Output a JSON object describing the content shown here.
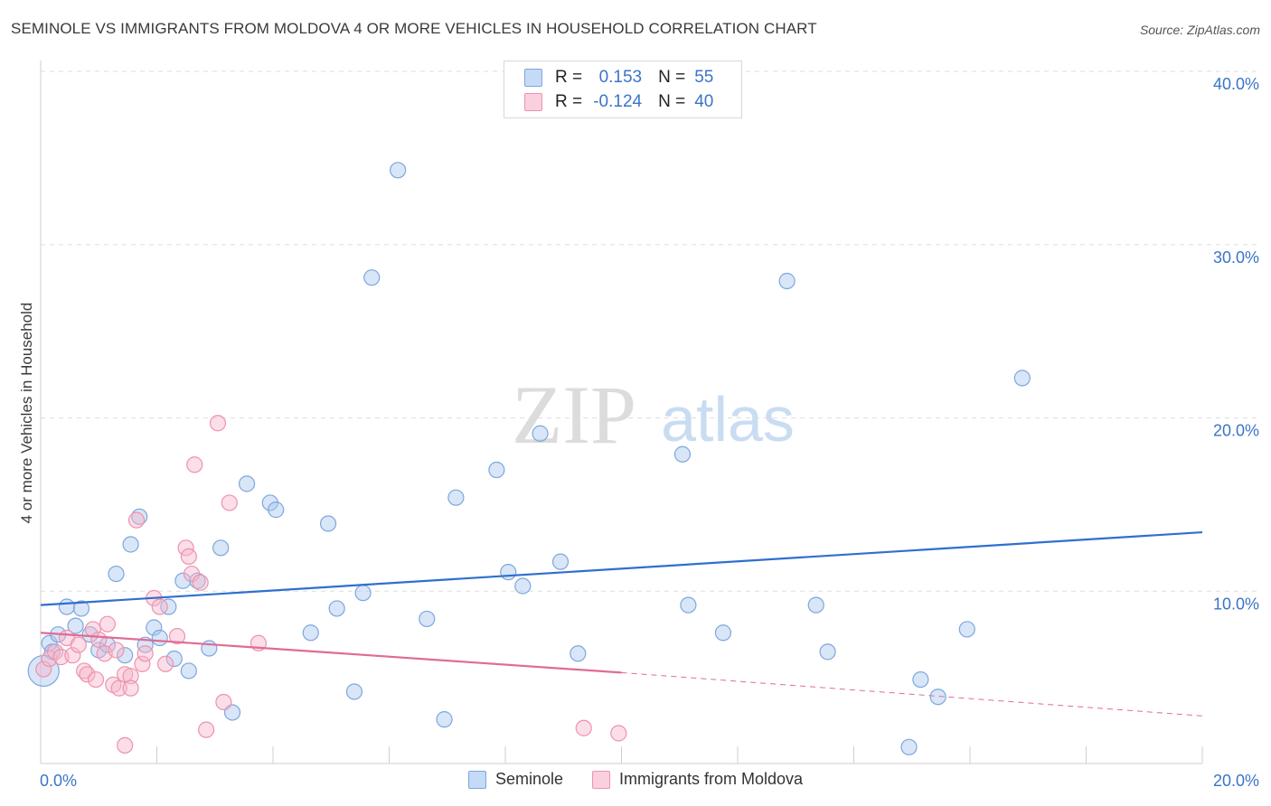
{
  "header": {
    "title": "SEMINOLE VS IMMIGRANTS FROM MOLDOVA 4 OR MORE VEHICLES IN HOUSEHOLD CORRELATION CHART",
    "source": "Source: ZipAtlas.com"
  },
  "watermark": {
    "zip": "ZIP",
    "atlas": "atlas"
  },
  "legend": {
    "rows": [
      {
        "r_label": "R =",
        "r_value": "0.153",
        "n_label": "N =",
        "n_value": "55",
        "color": "#a9c8f0"
      },
      {
        "r_label": "R =",
        "r_value": "-0.124",
        "n_label": "N =",
        "n_value": "40",
        "color": "#f7b6ca"
      }
    ]
  },
  "colors": {
    "blue_fill": "#a9c8f0",
    "blue_stroke": "#7da7dc",
    "blue_line": "#2f6fcf",
    "pink_fill": "#f7b6ca",
    "pink_stroke": "#ee92ae",
    "pink_line": "#e06b96",
    "tick_text": "#3b74c7"
  },
  "chart_data": {
    "type": "scatter",
    "title": "SEMINOLE VS IMMIGRANTS FROM MOLDOVA 4 OR MORE VEHICLES IN HOUSEHOLD CORRELATION CHART",
    "xlabel": "",
    "ylabel": "4 or more Vehicles in Household",
    "xlim": [
      0,
      20
    ],
    "ylim": [
      0,
      40
    ],
    "x_tick_labels": [
      "0.0%",
      "20.0%"
    ],
    "y_ticks": [
      10,
      20,
      30,
      40
    ],
    "y_tick_labels": [
      "10.0%",
      "20.0%",
      "30.0%",
      "40.0%"
    ],
    "grid": true,
    "legend_position": "bottom",
    "series": [
      {
        "name": "Seminole",
        "r": 0.153,
        "n": 55,
        "trend": {
          "x": [
            0,
            20
          ],
          "y": [
            9.2,
            13.4
          ]
        },
        "points": [
          [
            0.15,
            7.0
          ],
          [
            0.2,
            6.5
          ],
          [
            0.3,
            7.5
          ],
          [
            0.45,
            9.1
          ],
          [
            0.6,
            8.0
          ],
          [
            0.7,
            9.0
          ],
          [
            0.85,
            7.5
          ],
          [
            1.0,
            6.6
          ],
          [
            1.15,
            6.9
          ],
          [
            1.3,
            11.0
          ],
          [
            1.45,
            6.3
          ],
          [
            1.55,
            12.7
          ],
          [
            1.7,
            14.3
          ],
          [
            1.8,
            6.9
          ],
          [
            1.95,
            7.9
          ],
          [
            2.05,
            7.3
          ],
          [
            2.2,
            9.1
          ],
          [
            2.3,
            6.1
          ],
          [
            2.45,
            10.6
          ],
          [
            2.55,
            5.4
          ],
          [
            2.7,
            10.6
          ],
          [
            2.9,
            6.7
          ],
          [
            3.1,
            12.5
          ],
          [
            3.3,
            3.0
          ],
          [
            3.55,
            16.2
          ],
          [
            3.95,
            15.1
          ],
          [
            4.05,
            14.7
          ],
          [
            4.65,
            7.6
          ],
          [
            4.95,
            13.9
          ],
          [
            5.1,
            9.0
          ],
          [
            5.4,
            4.2
          ],
          [
            5.55,
            9.9
          ],
          [
            5.7,
            28.1
          ],
          [
            6.15,
            34.3
          ],
          [
            6.65,
            8.4
          ],
          [
            6.95,
            2.6
          ],
          [
            7.15,
            15.4
          ],
          [
            7.85,
            17.0
          ],
          [
            8.05,
            11.1
          ],
          [
            8.3,
            10.3
          ],
          [
            8.6,
            19.1
          ],
          [
            8.95,
            11.7
          ],
          [
            9.25,
            6.4
          ],
          [
            11.05,
            17.9
          ],
          [
            11.15,
            9.2
          ],
          [
            11.75,
            7.6
          ],
          [
            12.85,
            27.9
          ],
          [
            13.35,
            9.2
          ],
          [
            13.55,
            6.5
          ],
          [
            14.95,
            1.0
          ],
          [
            15.15,
            4.9
          ],
          [
            15.45,
            3.9
          ],
          [
            15.95,
            7.8
          ],
          [
            16.9,
            22.3
          ],
          [
            0.05,
            5.4
          ]
        ]
      },
      {
        "name": "Immigrants from Moldova",
        "r": -0.124,
        "n": 40,
        "trend": {
          "x": [
            0,
            10
          ],
          "y": [
            7.6,
            5.3
          ]
        },
        "trend_dashed": {
          "x": [
            10,
            20
          ],
          "y": [
            5.3,
            2.8
          ]
        },
        "points": [
          [
            0.05,
            5.5
          ],
          [
            0.15,
            6.1
          ],
          [
            0.25,
            6.5
          ],
          [
            0.35,
            6.2
          ],
          [
            0.45,
            7.3
          ],
          [
            0.55,
            6.3
          ],
          [
            0.65,
            6.9
          ],
          [
            0.75,
            5.4
          ],
          [
            0.8,
            5.2
          ],
          [
            0.9,
            7.8
          ],
          [
            1.0,
            7.2
          ],
          [
            1.1,
            6.4
          ],
          [
            1.15,
            8.1
          ],
          [
            1.25,
            4.6
          ],
          [
            1.3,
            6.6
          ],
          [
            1.35,
            4.4
          ],
          [
            1.45,
            5.2
          ],
          [
            1.55,
            5.1
          ],
          [
            1.55,
            4.4
          ],
          [
            1.65,
            14.1
          ],
          [
            1.75,
            5.8
          ],
          [
            1.8,
            6.4
          ],
          [
            1.95,
            9.6
          ],
          [
            2.05,
            9.1
          ],
          [
            2.15,
            5.8
          ],
          [
            2.35,
            7.4
          ],
          [
            2.5,
            12.5
          ],
          [
            2.55,
            12.0
          ],
          [
            2.6,
            11.0
          ],
          [
            2.75,
            10.5
          ],
          [
            2.85,
            2.0
          ],
          [
            3.05,
            19.7
          ],
          [
            3.15,
            3.6
          ],
          [
            3.25,
            15.1
          ],
          [
            3.75,
            7.0
          ],
          [
            9.35,
            2.1
          ],
          [
            9.95,
            1.8
          ],
          [
            1.45,
            1.1
          ],
          [
            2.65,
            17.3
          ],
          [
            0.95,
            4.9
          ]
        ]
      }
    ]
  },
  "bottom_legend": {
    "items": [
      "Seminole",
      "Immigrants from Moldova"
    ]
  }
}
